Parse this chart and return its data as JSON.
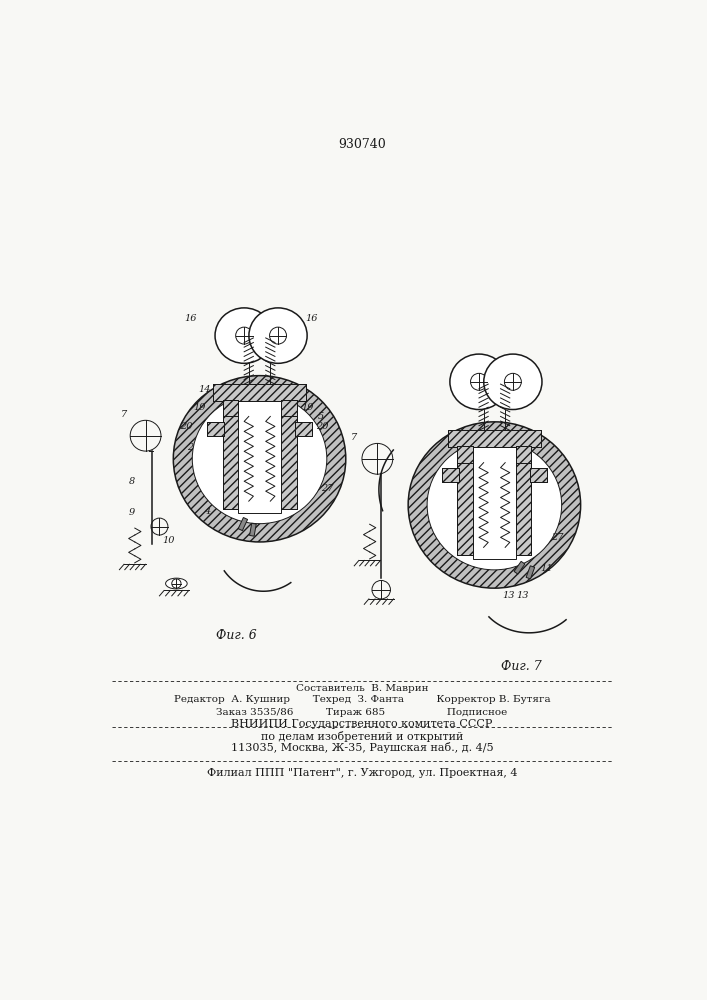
{
  "title": "930740",
  "bg_color": "#f8f8f5",
  "line_color": "#1a1a1a",
  "fig6_label": "Фиг. 6",
  "fig7_label": "Фиг. 7",
  "footer_lines": [
    "Составитель  В. Маврин",
    "Редактор  А. Кушнир       Техред  З. Фанта          Корректор В. Бутяга",
    "Заказ 3535/86          Тираж 685                   Подписное",
    "ВНИИПИ Государственного комитета СССР",
    "по делам изобретений и открытий",
    "113035, Москва, Ж-35, Раушская наб., д. 4/5",
    "Филиал ППП \"Патент\", г. Ужгород, ул. Проектная, 4"
  ]
}
